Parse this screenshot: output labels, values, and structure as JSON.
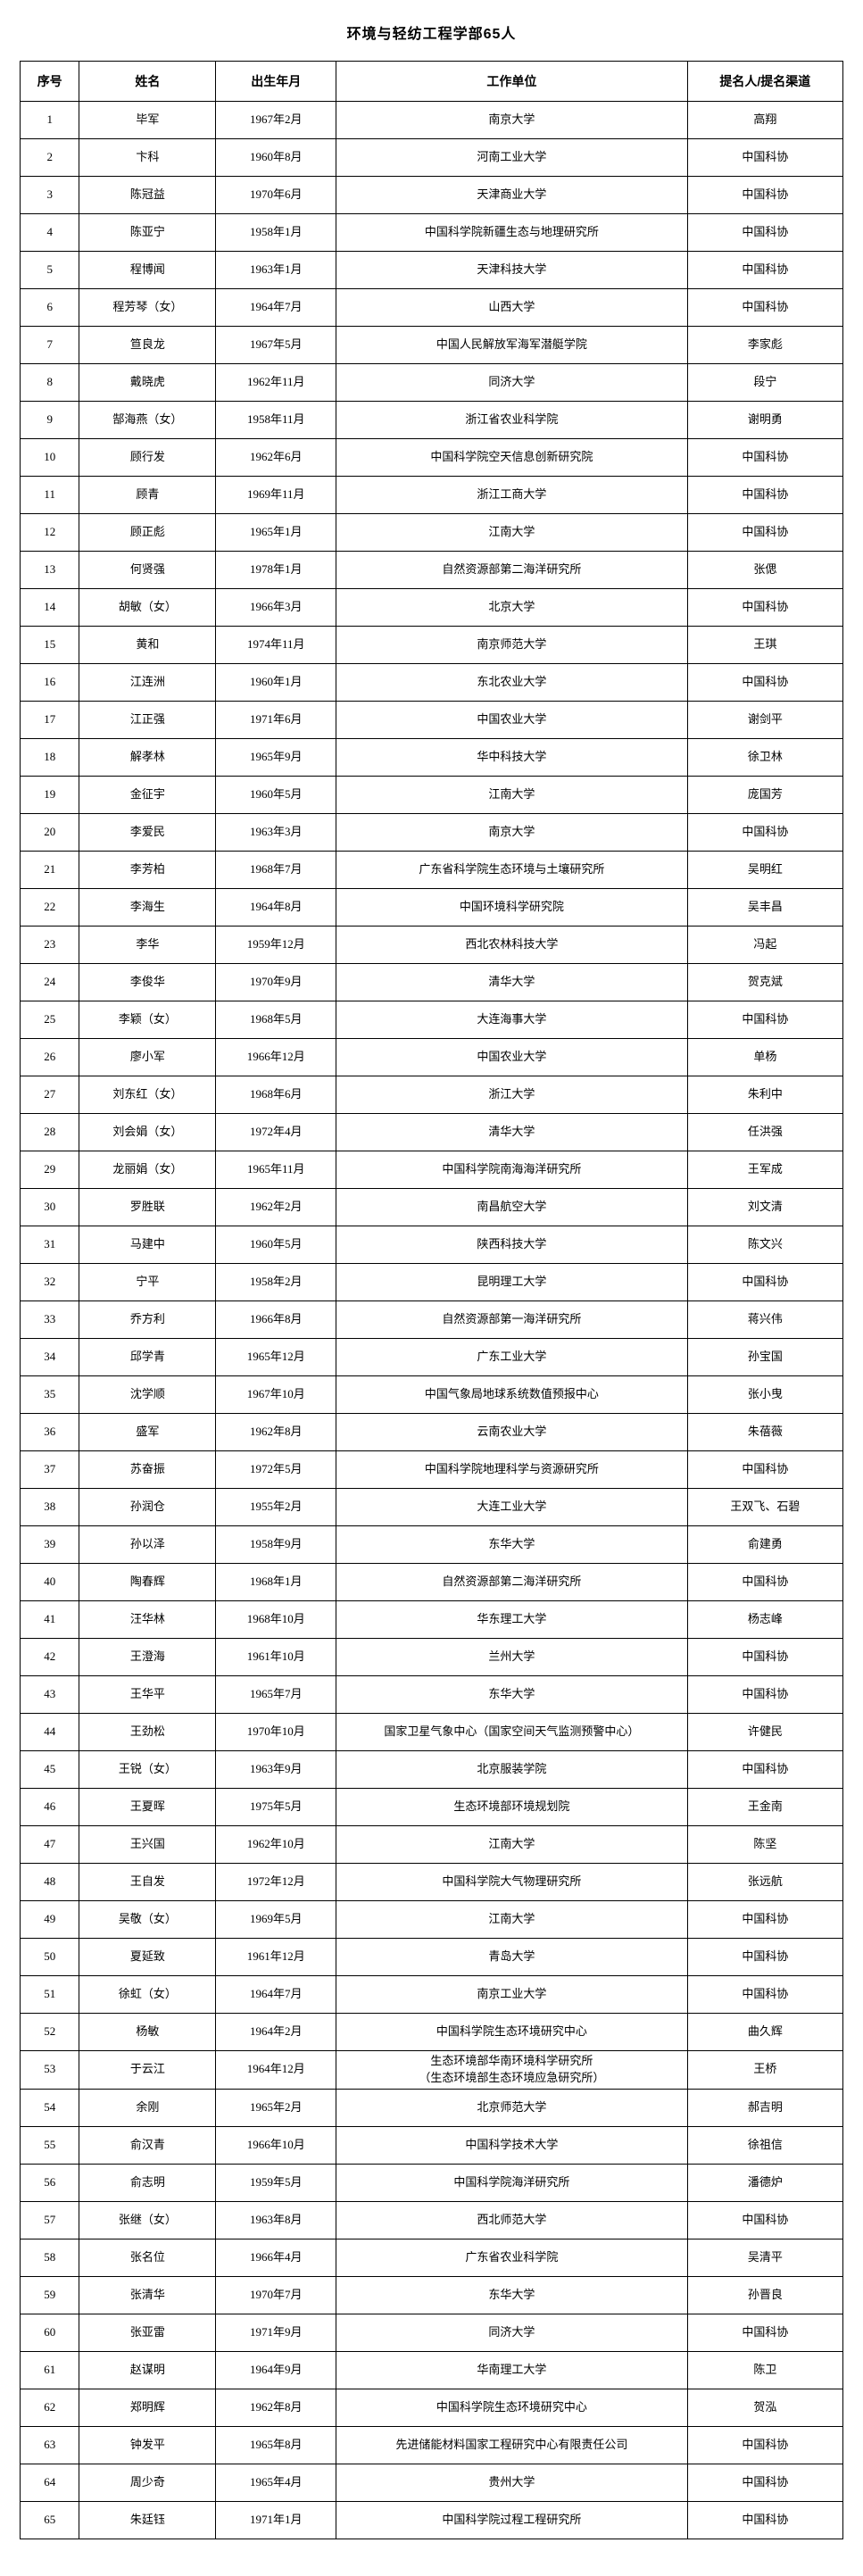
{
  "title": "环境与轻纺工程学部65人",
  "table": {
    "headers": [
      "序号",
      "姓名",
      "出生年月",
      "工作单位",
      "提名人/提名渠道"
    ],
    "column_keys": [
      "no",
      "name",
      "birth",
      "org",
      "nominator"
    ],
    "rows": [
      {
        "no": "1",
        "name": "毕军",
        "birth": "1967年2月",
        "org": "南京大学",
        "nominator": "高翔"
      },
      {
        "no": "2",
        "name": "卞科",
        "birth": "1960年8月",
        "org": "河南工业大学",
        "nominator": "中国科协"
      },
      {
        "no": "3",
        "name": "陈冠益",
        "birth": "1970年6月",
        "org": "天津商业大学",
        "nominator": "中国科协"
      },
      {
        "no": "4",
        "name": "陈亚宁",
        "birth": "1958年1月",
        "org": "中国科学院新疆生态与地理研究所",
        "nominator": "中国科协"
      },
      {
        "no": "5",
        "name": "程博闻",
        "birth": "1963年1月",
        "org": "天津科技大学",
        "nominator": "中国科协"
      },
      {
        "no": "6",
        "name": "程芳琴（女）",
        "birth": "1964年7月",
        "org": "山西大学",
        "nominator": "中国科协"
      },
      {
        "no": "7",
        "name": "笪良龙",
        "birth": "1967年5月",
        "org": "中国人民解放军海军潜艇学院",
        "nominator": "李家彪"
      },
      {
        "no": "8",
        "name": "戴晓虎",
        "birth": "1962年11月",
        "org": "同济大学",
        "nominator": "段宁"
      },
      {
        "no": "9",
        "name": "郜海燕（女）",
        "birth": "1958年11月",
        "org": "浙江省农业科学院",
        "nominator": "谢明勇"
      },
      {
        "no": "10",
        "name": "顾行发",
        "birth": "1962年6月",
        "org": "中国科学院空天信息创新研究院",
        "nominator": "中国科协"
      },
      {
        "no": "11",
        "name": "顾青",
        "birth": "1969年11月",
        "org": "浙江工商大学",
        "nominator": "中国科协"
      },
      {
        "no": "12",
        "name": "顾正彪",
        "birth": "1965年1月",
        "org": "江南大学",
        "nominator": "中国科协"
      },
      {
        "no": "13",
        "name": "何贤强",
        "birth": "1978年1月",
        "org": "自然资源部第二海洋研究所",
        "nominator": "张偲"
      },
      {
        "no": "14",
        "name": "胡敏（女）",
        "birth": "1966年3月",
        "org": "北京大学",
        "nominator": "中国科协"
      },
      {
        "no": "15",
        "name": "黄和",
        "birth": "1974年11月",
        "org": "南京师范大学",
        "nominator": "王琪"
      },
      {
        "no": "16",
        "name": "江连洲",
        "birth": "1960年1月",
        "org": "东北农业大学",
        "nominator": "中国科协"
      },
      {
        "no": "17",
        "name": "江正强",
        "birth": "1971年6月",
        "org": "中国农业大学",
        "nominator": "谢剑平"
      },
      {
        "no": "18",
        "name": "解孝林",
        "birth": "1965年9月",
        "org": "华中科技大学",
        "nominator": "徐卫林"
      },
      {
        "no": "19",
        "name": "金征宇",
        "birth": "1960年5月",
        "org": "江南大学",
        "nominator": "庞国芳"
      },
      {
        "no": "20",
        "name": "李爱民",
        "birth": "1963年3月",
        "org": "南京大学",
        "nominator": "中国科协"
      },
      {
        "no": "21",
        "name": "李芳柏",
        "birth": "1968年7月",
        "org": "广东省科学院生态环境与土壤研究所",
        "nominator": "吴明红"
      },
      {
        "no": "22",
        "name": "李海生",
        "birth": "1964年8月",
        "org": "中国环境科学研究院",
        "nominator": "吴丰昌"
      },
      {
        "no": "23",
        "name": "李华",
        "birth": "1959年12月",
        "org": "西北农林科技大学",
        "nominator": "冯起"
      },
      {
        "no": "24",
        "name": "李俊华",
        "birth": "1970年9月",
        "org": "清华大学",
        "nominator": "贺克斌"
      },
      {
        "no": "25",
        "name": "李颖（女）",
        "birth": "1968年5月",
        "org": "大连海事大学",
        "nominator": "中国科协"
      },
      {
        "no": "26",
        "name": "廖小军",
        "birth": "1966年12月",
        "org": "中国农业大学",
        "nominator": "单杨"
      },
      {
        "no": "27",
        "name": "刘东红（女）",
        "birth": "1968年6月",
        "org": "浙江大学",
        "nominator": "朱利中"
      },
      {
        "no": "28",
        "name": "刘会娟（女）",
        "birth": "1972年4月",
        "org": "清华大学",
        "nominator": "任洪强"
      },
      {
        "no": "29",
        "name": "龙丽娟（女）",
        "birth": "1965年11月",
        "org": "中国科学院南海海洋研究所",
        "nominator": "王军成"
      },
      {
        "no": "30",
        "name": "罗胜联",
        "birth": "1962年2月",
        "org": "南昌航空大学",
        "nominator": "刘文清"
      },
      {
        "no": "31",
        "name": "马建中",
        "birth": "1960年5月",
        "org": "陕西科技大学",
        "nominator": "陈文兴"
      },
      {
        "no": "32",
        "name": "宁平",
        "birth": "1958年2月",
        "org": "昆明理工大学",
        "nominator": "中国科协"
      },
      {
        "no": "33",
        "name": "乔方利",
        "birth": "1966年8月",
        "org": "自然资源部第一海洋研究所",
        "nominator": "蒋兴伟"
      },
      {
        "no": "34",
        "name": "邱学青",
        "birth": "1965年12月",
        "org": "广东工业大学",
        "nominator": "孙宝国"
      },
      {
        "no": "35",
        "name": "沈学顺",
        "birth": "1967年10月",
        "org": "中国气象局地球系统数值预报中心",
        "nominator": "张小曳"
      },
      {
        "no": "36",
        "name": "盛军",
        "birth": "1962年8月",
        "org": "云南农业大学",
        "nominator": "朱蓓薇"
      },
      {
        "no": "37",
        "name": "苏奋振",
        "birth": "1972年5月",
        "org": "中国科学院地理科学与资源研究所",
        "nominator": "中国科协"
      },
      {
        "no": "38",
        "name": "孙润仓",
        "birth": "1955年2月",
        "org": "大连工业大学",
        "nominator": "王双飞、石碧"
      },
      {
        "no": "39",
        "name": "孙以泽",
        "birth": "1958年9月",
        "org": "东华大学",
        "nominator": "俞建勇"
      },
      {
        "no": "40",
        "name": "陶春辉",
        "birth": "1968年1月",
        "org": "自然资源部第二海洋研究所",
        "nominator": "中国科协"
      },
      {
        "no": "41",
        "name": "汪华林",
        "birth": "1968年10月",
        "org": "华东理工大学",
        "nominator": "杨志峰"
      },
      {
        "no": "42",
        "name": "王澄海",
        "birth": "1961年10月",
        "org": "兰州大学",
        "nominator": "中国科协"
      },
      {
        "no": "43",
        "name": "王华平",
        "birth": "1965年7月",
        "org": "东华大学",
        "nominator": "中国科协"
      },
      {
        "no": "44",
        "name": "王劲松",
        "birth": "1970年10月",
        "org": "国家卫星气象中心（国家空间天气监测预警中心）",
        "nominator": "许健民"
      },
      {
        "no": "45",
        "name": "王锐（女）",
        "birth": "1963年9月",
        "org": "北京服装学院",
        "nominator": "中国科协"
      },
      {
        "no": "46",
        "name": "王夏晖",
        "birth": "1975年5月",
        "org": "生态环境部环境规划院",
        "nominator": "王金南"
      },
      {
        "no": "47",
        "name": "王兴国",
        "birth": "1962年10月",
        "org": "江南大学",
        "nominator": "陈坚"
      },
      {
        "no": "48",
        "name": "王自发",
        "birth": "1972年12月",
        "org": "中国科学院大气物理研究所",
        "nominator": "张远航"
      },
      {
        "no": "49",
        "name": "吴敬（女）",
        "birth": "1969年5月",
        "org": "江南大学",
        "nominator": "中国科协"
      },
      {
        "no": "50",
        "name": "夏延致",
        "birth": "1961年12月",
        "org": "青岛大学",
        "nominator": "中国科协"
      },
      {
        "no": "51",
        "name": "徐虹（女）",
        "birth": "1964年7月",
        "org": "南京工业大学",
        "nominator": "中国科协"
      },
      {
        "no": "52",
        "name": "杨敏",
        "birth": "1964年2月",
        "org": "中国科学院生态环境研究中心",
        "nominator": "曲久辉"
      },
      {
        "no": "53",
        "name": "于云江",
        "birth": "1964年12月",
        "org": "生态环境部华南环境科学研究所\n（生态环境部生态环境应急研究所）",
        "nominator": "王桥"
      },
      {
        "no": "54",
        "name": "余刚",
        "birth": "1965年2月",
        "org": "北京师范大学",
        "nominator": "郝吉明"
      },
      {
        "no": "55",
        "name": "俞汉青",
        "birth": "1966年10月",
        "org": "中国科学技术大学",
        "nominator": "徐祖信"
      },
      {
        "no": "56",
        "name": "俞志明",
        "birth": "1959年5月",
        "org": "中国科学院海洋研究所",
        "nominator": "潘德炉"
      },
      {
        "no": "57",
        "name": "张继（女）",
        "birth": "1963年8月",
        "org": "西北师范大学",
        "nominator": "中国科协"
      },
      {
        "no": "58",
        "name": "张名位",
        "birth": "1966年4月",
        "org": "广东省农业科学院",
        "nominator": "吴清平"
      },
      {
        "no": "59",
        "name": "张清华",
        "birth": "1970年7月",
        "org": "东华大学",
        "nominator": "孙晋良"
      },
      {
        "no": "60",
        "name": "张亚雷",
        "birth": "1971年9月",
        "org": "同济大学",
        "nominator": "中国科协"
      },
      {
        "no": "61",
        "name": "赵谋明",
        "birth": "1964年9月",
        "org": "华南理工大学",
        "nominator": "陈卫"
      },
      {
        "no": "62",
        "name": "郑明辉",
        "birth": "1962年8月",
        "org": "中国科学院生态环境研究中心",
        "nominator": "贺泓"
      },
      {
        "no": "63",
        "name": "钟发平",
        "birth": "1965年8月",
        "org": "先进储能材料国家工程研究中心有限责任公司",
        "nominator": "中国科协"
      },
      {
        "no": "64",
        "name": "周少奇",
        "birth": "1965年4月",
        "org": "贵州大学",
        "nominator": "中国科协"
      },
      {
        "no": "65",
        "name": "朱廷钰",
        "birth": "1971年1月",
        "org": "中国科学院过程工程研究所",
        "nominator": "中国科协"
      }
    ]
  }
}
